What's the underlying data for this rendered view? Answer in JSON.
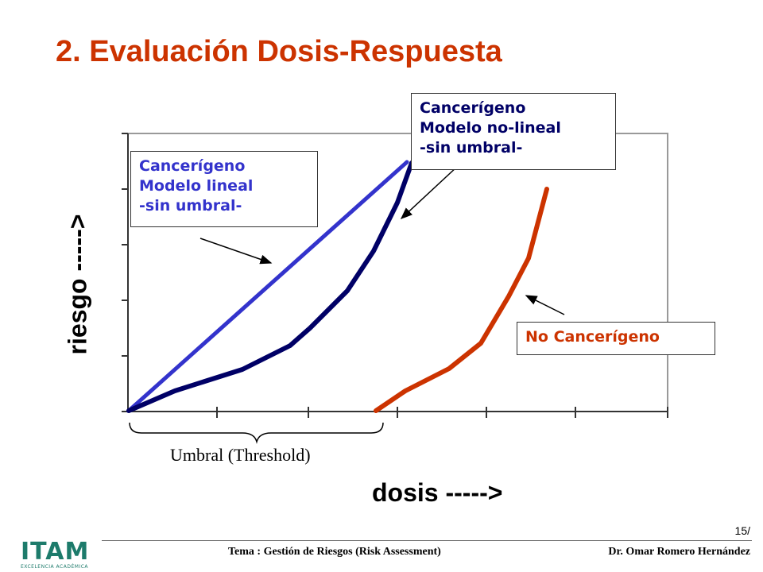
{
  "slide": {
    "title": "2. Evaluación Dosis-Respuesta",
    "page_number": "15/",
    "footer_topic": "Tema : Gestión de Riesgos (Risk Assessment)",
    "footer_author": "Dr. Omar Romero Hernández"
  },
  "logo": {
    "text": "ITAM",
    "subtitle": "EXCELENCIA ACADÉMICA"
  },
  "diagram": {
    "y_label": "riesgo ----->",
    "x_label": "dosis ----->",
    "threshold_label": "Umbral (Threshold)",
    "callouts": {
      "linear": [
        "Cancerígeno",
        "Modelo lineal",
        "-sin umbral-"
      ],
      "nonlinear": [
        "Cancerígeno",
        "Modelo no-lineal",
        "-sin umbral-"
      ],
      "non_carcinogen": "No Cancerígeno"
    },
    "colors": {
      "title": "#cc3300",
      "linear_curve": "#3333cc",
      "nonlinear_curve": "#000066",
      "non_carcinogen_curve": "#cc3300"
    }
  }
}
